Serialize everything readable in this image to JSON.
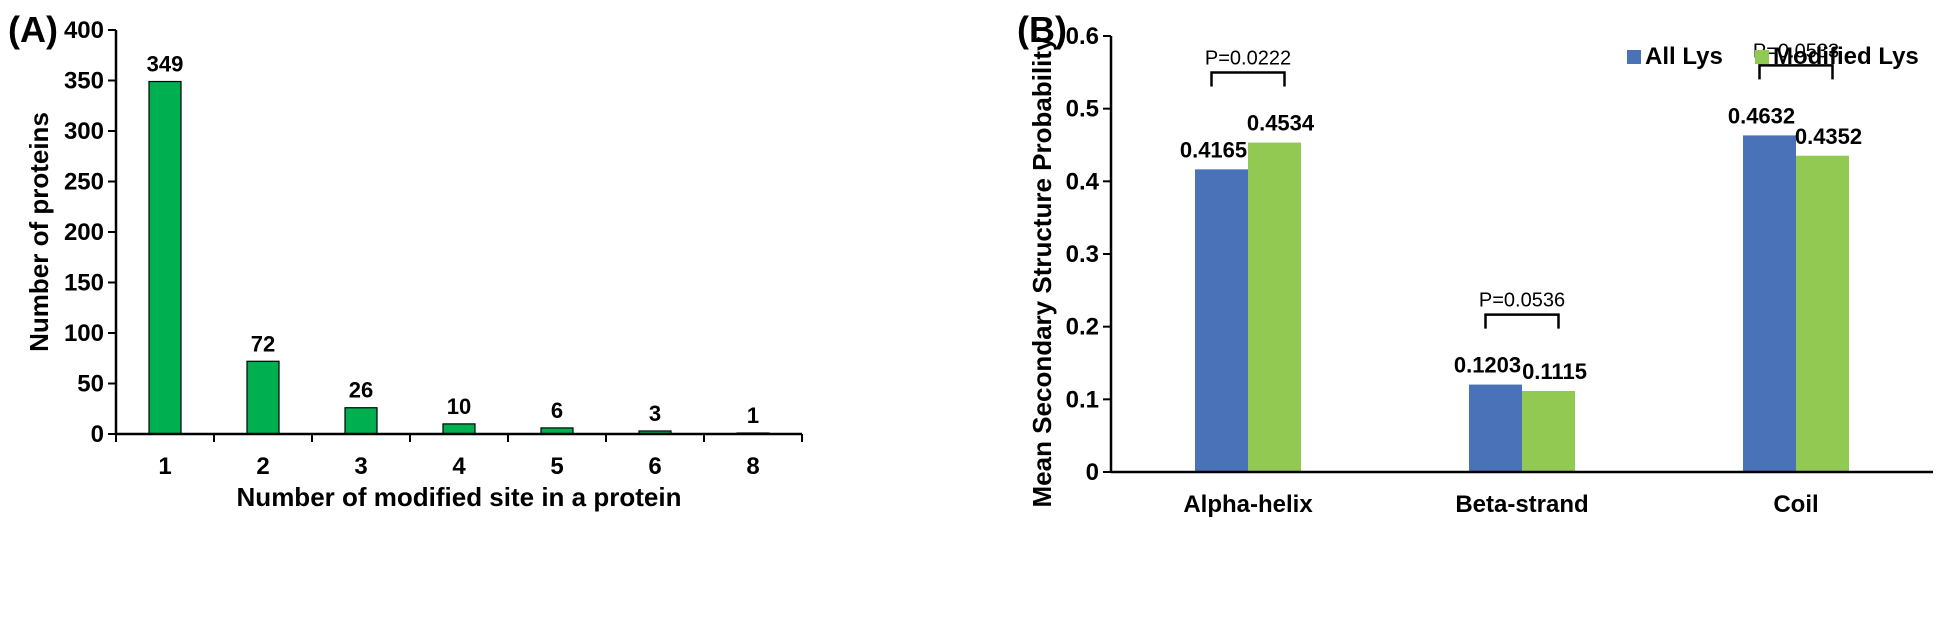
{
  "colors": {
    "green": "#00b050",
    "blue": "#4a72b8",
    "light_green": "#92c952",
    "axis": "#000000"
  },
  "chart_data": [
    {
      "panel_label": "(A)",
      "type": "bar",
      "title": "",
      "xlabel": "Number of modified site in a protein",
      "ylabel": "Number of proteins",
      "categories": [
        "1",
        "2",
        "3",
        "4",
        "5",
        "6",
        "8"
      ],
      "values": [
        349,
        72,
        26,
        10,
        6,
        3,
        1
      ],
      "value_labels": [
        "349",
        "72",
        "26",
        "10",
        "6",
        "3",
        "1"
      ],
      "ylim": [
        0,
        400
      ],
      "yticks": [
        0,
        50,
        100,
        150,
        200,
        250,
        300,
        350,
        400
      ],
      "ytick_labels": [
        "0",
        "50",
        "100",
        "150",
        "200",
        "250",
        "300",
        "350",
        "400"
      ],
      "grid": false
    },
    {
      "panel_label": "(B)",
      "type": "bar",
      "title": "",
      "xlabel": "",
      "ylabel": "Mean Secondary Structure Probability",
      "categories": [
        "Alpha-helix",
        "Beta-strand",
        "Coil"
      ],
      "series": [
        {
          "name": "All Lys",
          "values": [
            0.4165,
            0.1203,
            0.4632
          ],
          "value_labels": [
            "0.4165",
            "0.1203",
            "0.4632"
          ]
        },
        {
          "name": "Modified Lys",
          "values": [
            0.4534,
            0.1115,
            0.4352
          ],
          "value_labels": [
            "0.4534",
            "0.1115",
            "0.4352"
          ]
        }
      ],
      "significance": [
        "P=0.0222",
        "P=0.0536",
        "P=0.0533"
      ],
      "ylim": [
        0,
        0.6
      ],
      "yticks": [
        0,
        0.1,
        0.2,
        0.3,
        0.4,
        0.5,
        0.6
      ],
      "ytick_labels": [
        "0",
        "0.1",
        "0.2",
        "0.3",
        "0.4",
        "0.5",
        "0.6"
      ],
      "legend_position": "top-right",
      "grid": false
    }
  ]
}
